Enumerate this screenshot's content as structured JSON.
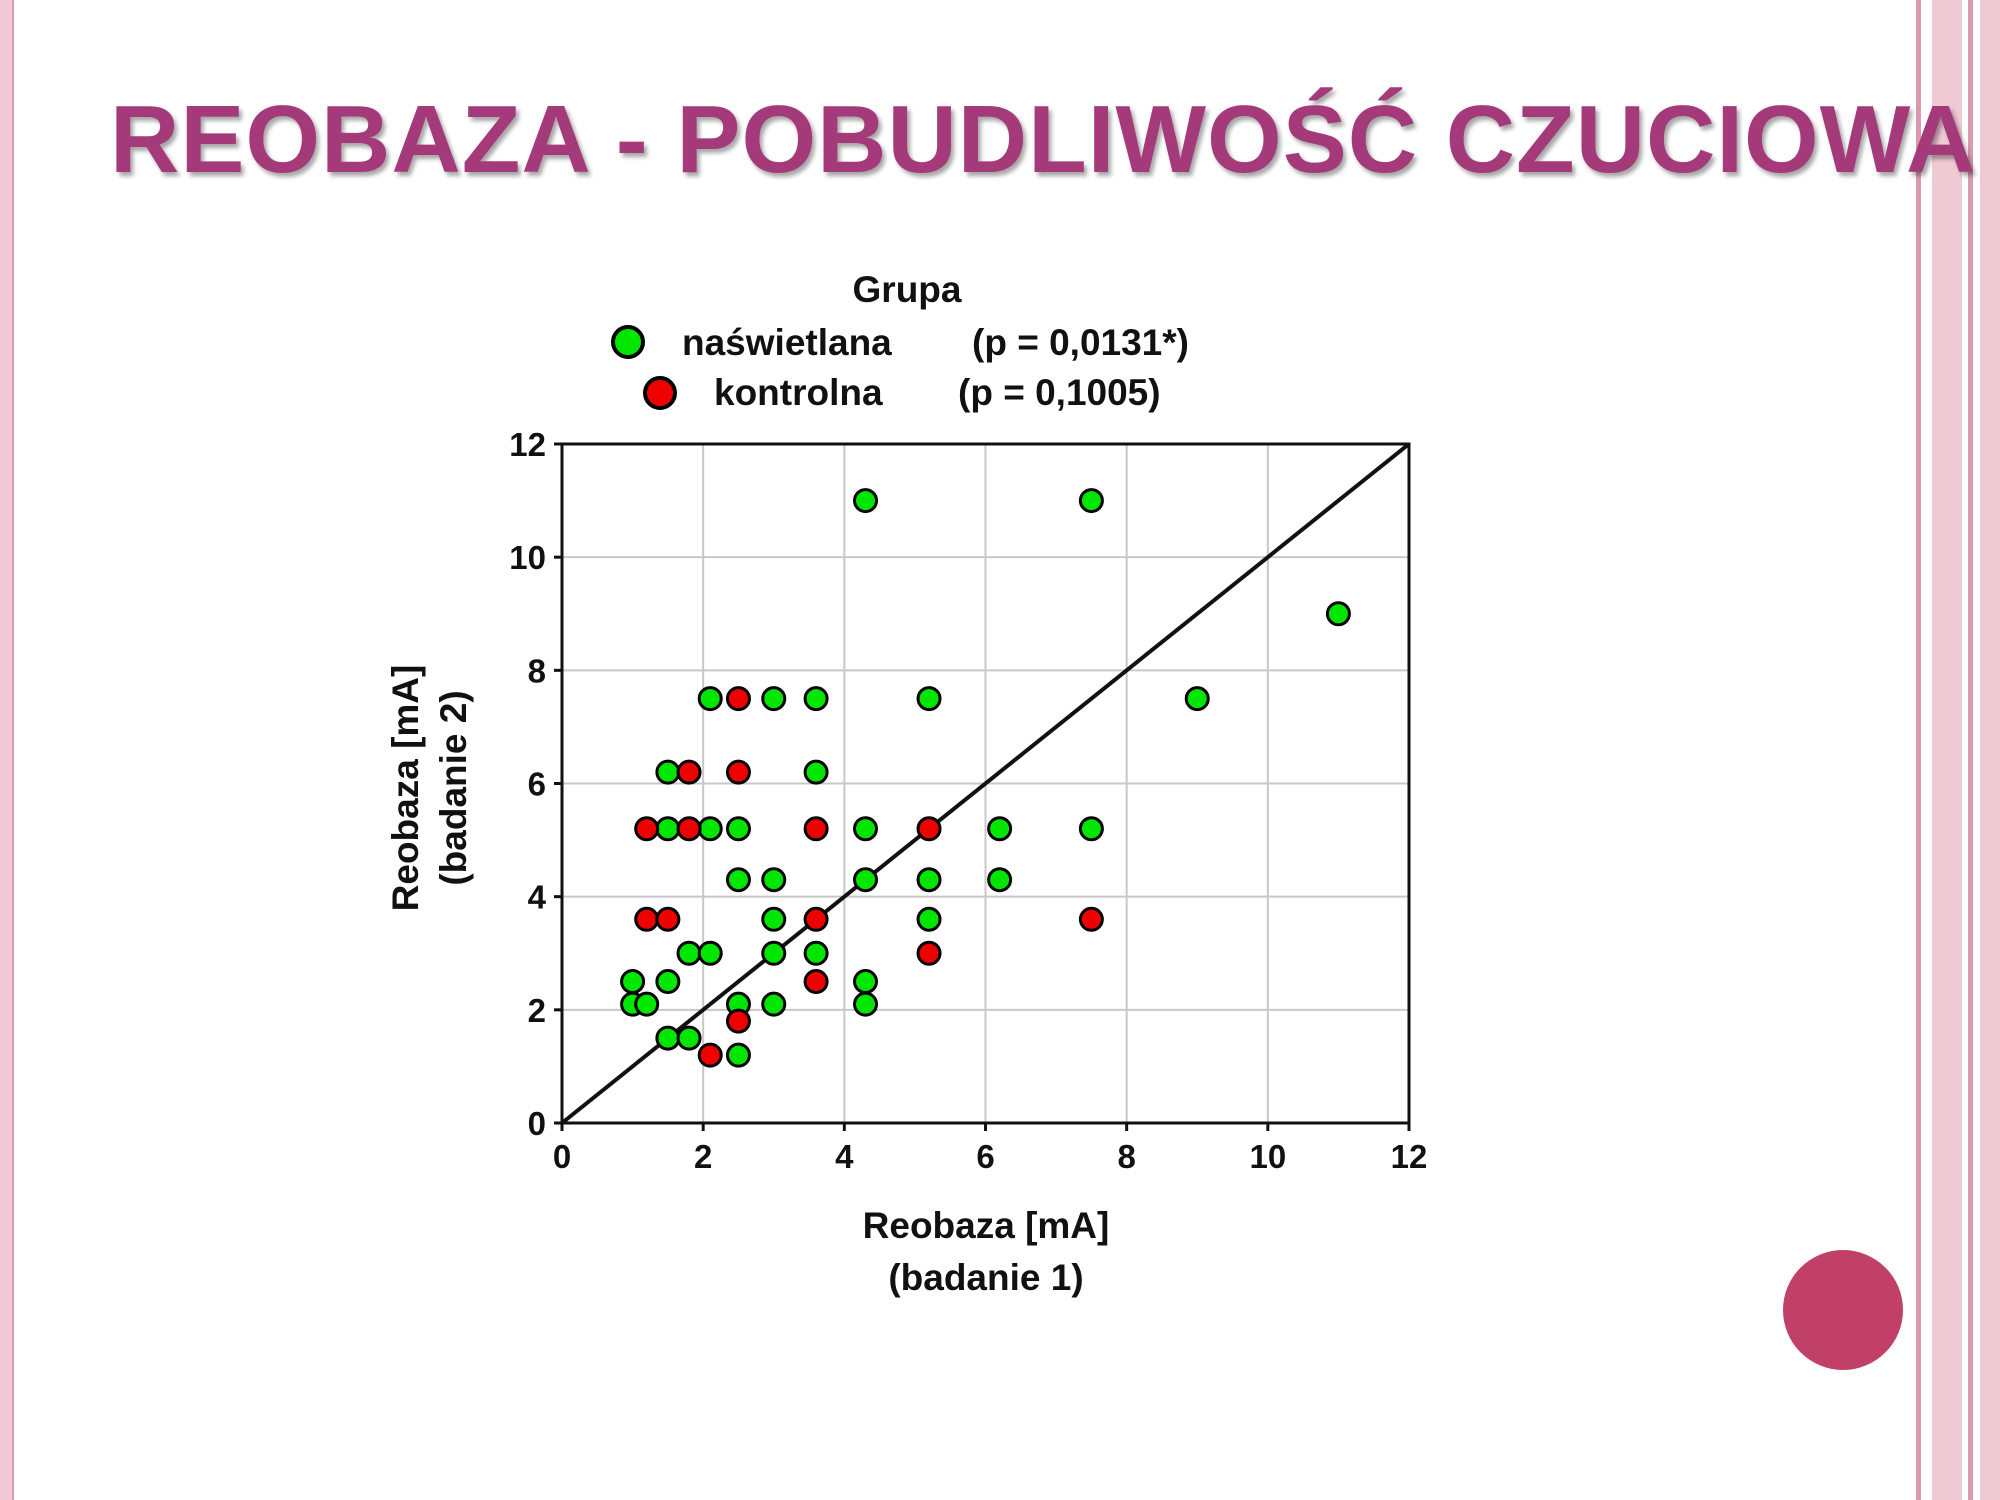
{
  "slide": {
    "title": "REOBAZA - POBUDLIWOŚĆ CZUCIOWA"
  },
  "colors": {
    "title": "#a53a7a",
    "accent_circle": "#c04068",
    "frame": "#efc9d4",
    "group_1": "#00e600",
    "group_2": "#ee0000"
  },
  "chart_data": {
    "type": "scatter",
    "legend_title": "Grupa",
    "legend_position": "top",
    "xlabel_line1": "Reobaza [mA]",
    "xlabel_line2": "(badanie 1)",
    "ylabel_line1": "Reobaza [mA]",
    "ylabel_line2": "(badanie 2)",
    "xlim": [
      0,
      12
    ],
    "ylim": [
      0,
      12
    ],
    "xticks": [
      0,
      2,
      4,
      6,
      8,
      10,
      12
    ],
    "yticks": [
      0,
      2,
      4,
      6,
      8,
      10,
      12
    ],
    "grid": true,
    "reference_line": {
      "x": [
        0,
        12
      ],
      "y": [
        0,
        12
      ]
    },
    "series": [
      {
        "name": "naświetlana",
        "stat": "(p = 0,0131*)",
        "color": "#00e600",
        "points": [
          [
            4.3,
            11
          ],
          [
            7.5,
            11
          ],
          [
            11,
            9
          ],
          [
            9,
            7.5
          ],
          [
            2.1,
            7.5
          ],
          [
            3,
            7.5
          ],
          [
            3.6,
            7.5
          ],
          [
            5.2,
            7.5
          ],
          [
            1.5,
            6.2
          ],
          [
            3.6,
            6.2
          ],
          [
            1.5,
            5.2
          ],
          [
            2.1,
            5.2
          ],
          [
            2.5,
            5.2
          ],
          [
            4.3,
            5.2
          ],
          [
            6.2,
            5.2
          ],
          [
            7.5,
            5.2
          ],
          [
            2.5,
            4.3
          ],
          [
            3,
            4.3
          ],
          [
            4.3,
            4.3
          ],
          [
            5.2,
            4.3
          ],
          [
            6.2,
            4.3
          ],
          [
            3,
            3.6
          ],
          [
            5.2,
            3.6
          ],
          [
            1.8,
            3
          ],
          [
            2.1,
            3
          ],
          [
            3,
            3
          ],
          [
            3.6,
            3
          ],
          [
            1,
            2.5
          ],
          [
            1.5,
            2.5
          ],
          [
            4.3,
            2.5
          ],
          [
            1,
            2.1
          ],
          [
            1.2,
            2.1
          ],
          [
            2.5,
            2.1
          ],
          [
            3,
            2.1
          ],
          [
            4.3,
            2.1
          ],
          [
            1.5,
            1.5
          ],
          [
            1.8,
            1.5
          ],
          [
            2.5,
            1.2
          ]
        ]
      },
      {
        "name": "kontrolna",
        "stat": "(p = 0,1005)",
        "color": "#ee0000",
        "points": [
          [
            2.5,
            7.5
          ],
          [
            1.8,
            6.2
          ],
          [
            2.5,
            6.2
          ],
          [
            1.2,
            5.2
          ],
          [
            1.8,
            5.2
          ],
          [
            3.6,
            5.2
          ],
          [
            5.2,
            5.2
          ],
          [
            1.2,
            3.6
          ],
          [
            1.5,
            3.6
          ],
          [
            3.6,
            3.6
          ],
          [
            7.5,
            3.6
          ],
          [
            5.2,
            3
          ],
          [
            3.6,
            2.5
          ],
          [
            2.5,
            1.8
          ],
          [
            2.1,
            1.2
          ]
        ]
      }
    ]
  }
}
